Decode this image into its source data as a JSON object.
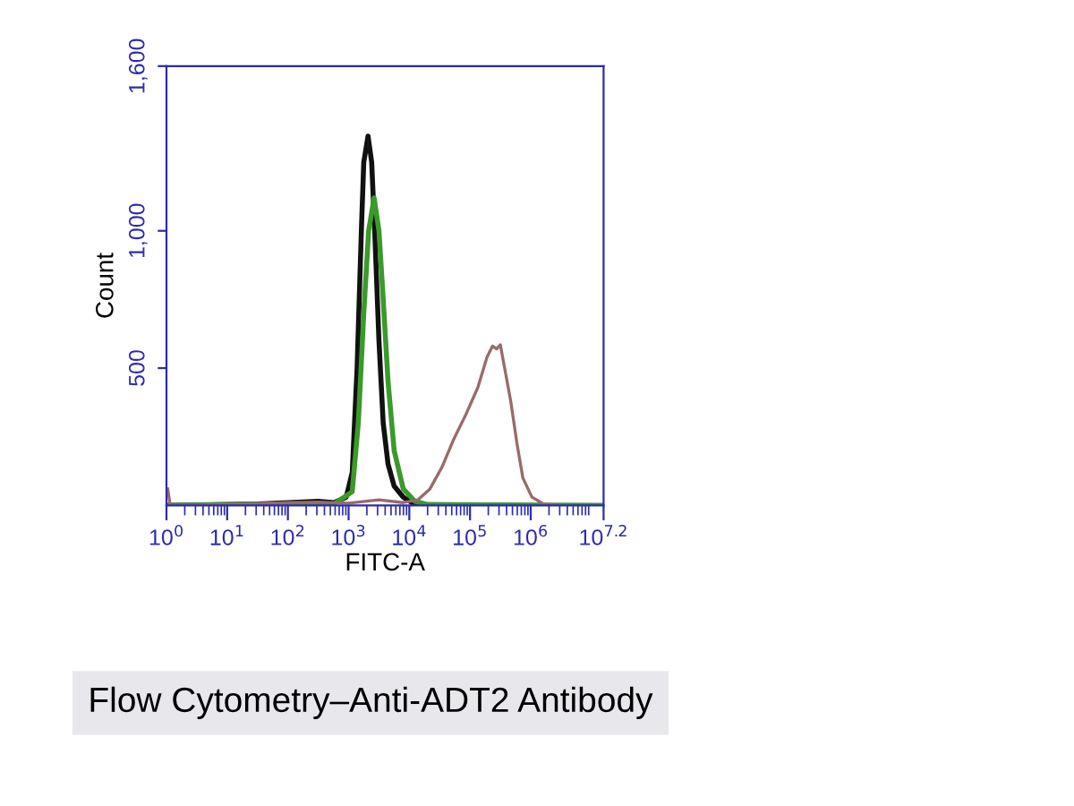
{
  "chart_data": {
    "type": "line",
    "xlabel": "FITC-A",
    "ylabel": "Count",
    "log": "x",
    "xlim": [
      1,
      15848932
    ],
    "ylim": [
      0,
      1600
    ],
    "xticks": [
      {
        "value": 1,
        "label": "10$^{0}$"
      },
      {
        "value": 10,
        "label": "10$^{1}$"
      },
      {
        "value": 100,
        "label": "10$^{2}$"
      },
      {
        "value": 1000,
        "label": "10$^{3}$"
      },
      {
        "value": 10000,
        "label": "10$^{4}$"
      },
      {
        "value": 100000,
        "label": "10$^{5}$"
      },
      {
        "value": 1000000,
        "label": "10$^{6}$"
      },
      {
        "value": 15848932,
        "label": "10$^{7.2}$"
      }
    ],
    "yticks": [
      {
        "value": 500,
        "label": "500"
      },
      {
        "value": 1000,
        "label": "1,000"
      },
      {
        "value": 1600,
        "label": "1,600"
      }
    ],
    "grid": false,
    "marker": "none",
    "line_style": "solid",
    "series": [
      {
        "color": "#111111",
        "x": [
          1.05,
          32,
          100,
          316,
          575,
          912,
          1148,
          1380,
          1622,
          1778,
          2089,
          2399,
          2692,
          3162,
          3715,
          4467,
          5623,
          7943,
          10965,
          15000
        ],
        "values": [
          0,
          5,
          10,
          15,
          10,
          30,
          120,
          500,
          1000,
          1250,
          1345,
          1250,
          1000,
          600,
          300,
          150,
          70,
          30,
          10,
          0
        ]
      },
      {
        "color": "#3a9a2a",
        "x": [
          1.05,
          100,
          575,
          1148,
          1445,
          1778,
          2138,
          2630,
          3162,
          3715,
          4467,
          5623,
          7943,
          12303,
          20000,
          15000000
        ],
        "values": [
          0,
          5,
          5,
          50,
          300,
          700,
          1000,
          1120,
          1000,
          750,
          450,
          200,
          60,
          15,
          3,
          0
        ]
      },
      {
        "color": "#9a6a6a",
        "x": [
          1.05,
          1.15,
          32,
          100,
          316,
          1000,
          3162,
          7943,
          13804,
          21878,
          34674,
          53703,
          85114,
          134896,
          190546,
          234423,
          275423,
          316228,
          371535,
          467735,
          588844,
          741310,
          1047129,
          1621810,
          3000000
        ],
        "values": [
          60,
          0,
          5,
          10,
          12,
          8,
          20,
          10,
          20,
          60,
          140,
          240,
          330,
          430,
          540,
          580,
          570,
          585,
          500,
          380,
          230,
          100,
          30,
          5,
          0
        ]
      }
    ],
    "annotations": [
      "Flow Cytometry–Anti-ADT2 Antibody"
    ]
  }
}
